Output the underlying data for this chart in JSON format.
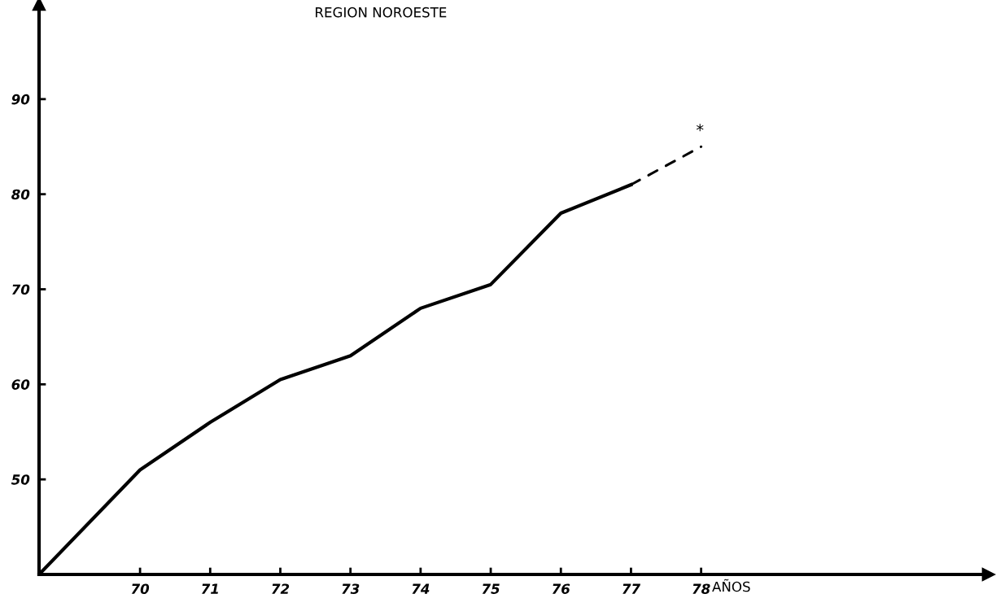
{
  "chart_data": {
    "type": "line",
    "title": "REGION NOROESTE",
    "xlabel": "AÑOS",
    "xlim": [
      68.56,
      82.1
    ],
    "ylim": [
      40,
      100
    ],
    "xticks": [
      70,
      71,
      72,
      73,
      74,
      75,
      76,
      77,
      78
    ],
    "yticks": [
      50,
      60,
      70,
      80,
      90
    ],
    "series": [
      {
        "color": "#000000",
        "line_style": "solid",
        "x": [
          68.56,
          70,
          71,
          72,
          73,
          74,
          75,
          76,
          77
        ],
        "values": [
          40,
          51,
          56,
          60.5,
          63,
          68,
          70.5,
          78,
          81
        ]
      },
      {
        "color": "#000000",
        "line_style": "dashed",
        "x": [
          77,
          78
        ],
        "values": [
          81,
          85
        ]
      }
    ],
    "annotations": [
      "*"
    ],
    "grid": false,
    "legend": false,
    "marker": "none"
  }
}
